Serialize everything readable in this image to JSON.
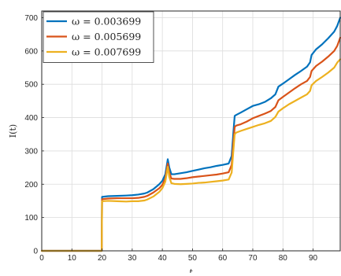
{
  "chart_data": {
    "type": "line",
    "xlabel": "t",
    "ylabel": "I(t)",
    "xlim": [
      0,
      99
    ],
    "ylim": [
      0,
      720
    ],
    "xticks": [
      0,
      10,
      20,
      30,
      40,
      50,
      60,
      70,
      80,
      90
    ],
    "yticks": [
      0,
      100,
      200,
      300,
      400,
      500,
      600,
      700
    ],
    "grid": true,
    "legend_position": "top-left",
    "series": [
      {
        "name": "ω = 0.003699",
        "color": "#0072BD",
        "x": [
          0,
          19.9,
          20,
          22,
          25,
          28,
          30,
          32,
          34,
          35,
          37,
          39,
          40,
          41,
          41.8,
          42.3,
          43,
          44,
          46,
          48,
          50,
          52,
          54,
          56,
          58,
          60,
          62,
          63,
          63.6,
          64,
          64.5,
          66,
          68,
          70,
          72,
          74,
          76,
          77.5,
          78.5,
          80,
          82,
          84,
          86,
          88,
          89,
          89.5,
          91,
          93,
          95,
          97,
          98,
          99
        ],
        "y": [
          0,
          0,
          162,
          164,
          165,
          166,
          167,
          169,
          172,
          175,
          185,
          200,
          210,
          230,
          275,
          250,
          230,
          230,
          233,
          236,
          240,
          244,
          248,
          251,
          255,
          258,
          262,
          285,
          360,
          405,
          408,
          415,
          425,
          435,
          440,
          447,
          458,
          470,
          493,
          502,
          515,
          528,
          540,
          553,
          566,
          588,
          605,
          620,
          638,
          658,
          675,
          700
        ]
      },
      {
        "name": "ω = 0.005699",
        "color": "#D95319",
        "x": [
          0,
          19.9,
          20,
          22,
          25,
          28,
          30,
          32,
          34,
          35,
          37,
          39,
          40,
          41,
          41.8,
          42.3,
          43,
          44,
          46,
          48,
          50,
          52,
          54,
          56,
          58,
          60,
          62,
          63,
          63.6,
          64,
          64.5,
          66,
          68,
          70,
          72,
          74,
          76,
          77.5,
          78.5,
          80,
          82,
          84,
          86,
          88,
          89,
          89.5,
          91,
          93,
          95,
          97,
          98,
          99
        ],
        "y": [
          0,
          0,
          155,
          157,
          158,
          158,
          158,
          159,
          162,
          165,
          175,
          188,
          198,
          218,
          262,
          235,
          217,
          216,
          216,
          218,
          221,
          223,
          225,
          227,
          229,
          232,
          236,
          258,
          330,
          372,
          376,
          380,
          388,
          398,
          405,
          412,
          420,
          432,
          452,
          462,
          475,
          488,
          500,
          510,
          522,
          540,
          555,
          568,
          583,
          600,
          615,
          640
        ]
      },
      {
        "name": "ω = 0.007699",
        "color": "#EDB120",
        "x": [
          0,
          19.9,
          20,
          22,
          25,
          28,
          30,
          32,
          34,
          35,
          37,
          39,
          40,
          41,
          41.8,
          42.3,
          43,
          44,
          46,
          48,
          50,
          52,
          54,
          56,
          58,
          60,
          62,
          63,
          63.6,
          64,
          64.5,
          66,
          68,
          70,
          72,
          74,
          76,
          77.5,
          78.5,
          80,
          82,
          84,
          86,
          88,
          89,
          89.5,
          91,
          93,
          95,
          97,
          98,
          99
        ],
        "y": [
          0,
          0,
          149,
          150,
          149,
          148,
          149,
          149,
          151,
          154,
          163,
          177,
          188,
          208,
          252,
          222,
          203,
          201,
          200,
          201,
          202,
          204,
          205,
          207,
          209,
          211,
          214,
          235,
          305,
          350,
          355,
          360,
          366,
          372,
          378,
          383,
          390,
          402,
          418,
          428,
          440,
          450,
          460,
          470,
          480,
          497,
          510,
          522,
          535,
          550,
          565,
          575
        ]
      }
    ]
  }
}
